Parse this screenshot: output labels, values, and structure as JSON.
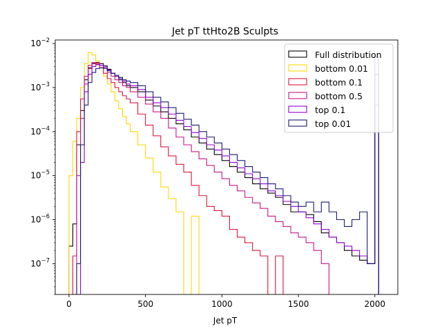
{
  "chart_data": {
    "type": "line",
    "title": "Jet pT ttHto2B Sculpts",
    "xlabel": "Jet pT",
    "ylabel": "",
    "xlim": [
      -90,
      2150
    ],
    "ylim": [
      2e-08,
      0.012
    ],
    "yscale": "log",
    "x_ticks": [
      0,
      500,
      1000,
      1500,
      2000
    ],
    "y_ticks": [
      {
        "value": 1e-07,
        "mantissa": "10",
        "exp": "−7"
      },
      {
        "value": 1e-06,
        "mantissa": "10",
        "exp": "−6"
      },
      {
        "value": 1e-05,
        "mantissa": "10",
        "exp": "−5"
      },
      {
        "value": 0.0001,
        "mantissa": "10",
        "exp": "−4"
      },
      {
        "value": 0.001,
        "mantissa": "10",
        "exp": "−3"
      },
      {
        "value": 0.01,
        "mantissa": "10",
        "exp": "−2"
      }
    ],
    "legend_position": "top-right",
    "bin_width": 25,
    "series": [
      {
        "name": "Full distribution",
        "color": "#000000",
        "edges": [
          0,
          25,
          50,
          75,
          100,
          125,
          150,
          175,
          200,
          225,
          250,
          275,
          300,
          325,
          350,
          375,
          400,
          450,
          500,
          550,
          600,
          650,
          700,
          750,
          800,
          850,
          900,
          950,
          1000,
          1050,
          1100,
          1150,
          1200,
          1250,
          1300,
          1350,
          1400,
          1450,
          1500,
          1550,
          1600,
          1650,
          1700,
          1750,
          1800,
          1850,
          1900,
          1950,
          2000,
          2025,
          2050
        ],
        "values": [
          2.5e-07,
          8e-07,
          5e-05,
          0.0003,
          0.0015,
          0.0028,
          0.0035,
          0.0037,
          0.0035,
          0.0031,
          0.0026,
          0.0021,
          0.0018,
          0.0015,
          0.0013,
          0.0011,
          0.001,
          0.0008,
          0.00052,
          0.00038,
          0.00028,
          0.0002,
          0.00015,
          0.00011,
          7.5e-05,
          5.5e-05,
          4e-05,
          3e-05,
          2.2e-05,
          1.6e-05,
          1.2e-05,
          9e-06,
          6.5e-06,
          5e-06,
          4e-06,
          3.2e-06,
          2.2e-06,
          1.5e-06,
          1.5e-06,
          1.3e-06,
          9e-07,
          5e-07,
          4e-07,
          3e-07,
          2e-07,
          1.5e-07,
          1.2e-07,
          1e-07,
          0.002,
          2e-08
        ]
      },
      {
        "name": "bottom 0.01",
        "color": "#ffd700",
        "edges": [
          0,
          25,
          50,
          75,
          100,
          125,
          150,
          175,
          200,
          225,
          250,
          275,
          300,
          325,
          350,
          375,
          400,
          450,
          500,
          550,
          600,
          650,
          700,
          750,
          800,
          850,
          900
        ],
        "values": [
          1e-05,
          6e-05,
          0.0002,
          0.001,
          0.0035,
          0.0062,
          0.0055,
          0.004,
          0.0028,
          0.0018,
          0.0012,
          0.0008,
          0.0005,
          0.00033,
          0.00022,
          0.00015,
          0.0001,
          5e-05,
          2.5e-05,
          1.2e-05,
          5.5e-06,
          3e-06,
          1.5e-06,
          2e-08,
          1.2e-06,
          2e-08
        ]
      },
      {
        "name": "bottom 0.1",
        "color": "#dc143c",
        "edges": [
          0,
          25,
          50,
          75,
          100,
          125,
          150,
          175,
          200,
          225,
          250,
          275,
          300,
          325,
          350,
          375,
          400,
          450,
          500,
          550,
          600,
          650,
          700,
          750,
          800,
          850,
          900,
          950,
          1000,
          1050,
          1100,
          1150,
          1200,
          1250,
          1300,
          1350,
          1400,
          1450
        ],
        "values": [
          2e-08,
          1.5e-07,
          0.0001,
          0.00055,
          0.0018,
          0.0032,
          0.0037,
          0.0034,
          0.0028,
          0.0021,
          0.0016,
          0.0013,
          0.001,
          0.0008,
          0.00065,
          0.00055,
          0.00045,
          0.00025,
          0.00014,
          8e-05,
          4.5e-05,
          2.8e-05,
          1.8e-05,
          1.2e-05,
          6e-06,
          3.5e-06,
          2e-06,
          1.6e-06,
          1.2e-06,
          6e-07,
          4e-07,
          3e-07,
          2e-07,
          1.5e-07,
          2e-08,
          1.5e-07,
          2e-08
        ]
      },
      {
        "name": "bottom 0.5",
        "color": "#c71585",
        "edges": [
          0,
          25,
          50,
          75,
          100,
          125,
          150,
          175,
          200,
          225,
          250,
          275,
          300,
          325,
          350,
          375,
          400,
          450,
          500,
          550,
          600,
          650,
          700,
          750,
          800,
          850,
          900,
          950,
          1000,
          1050,
          1100,
          1150,
          1200,
          1250,
          1300,
          1350,
          1400,
          1450,
          1500,
          1550,
          1600,
          1650,
          1700
        ],
        "values": [
          2e-08,
          2e-08,
          1e-05,
          0.0002,
          0.0012,
          0.0027,
          0.0036,
          0.0036,
          0.0032,
          0.0027,
          0.0022,
          0.0018,
          0.0015,
          0.0013,
          0.0011,
          0.001,
          0.0008,
          0.0006,
          0.00042,
          0.00028,
          0.0002,
          0.00012,
          7.5e-05,
          5e-05,
          3.5e-05,
          2.4e-05,
          1.7e-05,
          1.2e-05,
          8.5e-06,
          6e-06,
          4.5e-06,
          3.2e-06,
          2.4e-06,
          1.8e-06,
          1.2e-06,
          9e-07,
          7e-07,
          5e-07,
          4e-07,
          3e-07,
          2e-07,
          1e-07
        ]
      },
      {
        "name": "top 0.1",
        "color": "#9400d3",
        "edges": [
          0,
          25,
          50,
          75,
          100,
          125,
          150,
          175,
          200,
          225,
          250,
          275,
          300,
          325,
          350,
          375,
          400,
          450,
          500,
          550,
          600,
          650,
          700,
          750,
          800,
          850,
          900,
          950,
          1000,
          1050,
          1100,
          1150,
          1200,
          1250,
          1300,
          1350,
          1400,
          1450,
          1500,
          1550,
          1600,
          1650,
          1700,
          1750,
          1800,
          1850,
          1900,
          1950,
          2000,
          2025,
          2050
        ],
        "values": [
          2e-08,
          2e-08,
          2e-08,
          2e-05,
          0.0008,
          0.002,
          0.003,
          0.0033,
          0.0032,
          0.0029,
          0.0025,
          0.0021,
          0.0018,
          0.0016,
          0.0014,
          0.0012,
          0.0011,
          0.0009,
          0.0006,
          0.00045,
          0.00035,
          0.00025,
          0.00018,
          0.00013,
          9.5e-05,
          7e-05,
          5e-05,
          3.8e-05,
          2.8e-05,
          2e-05,
          1.5e-05,
          1.1e-05,
          8.5e-06,
          6.5e-06,
          4.5e-06,
          3.5e-06,
          2.6e-06,
          2e-06,
          1.5e-06,
          1.1e-06,
          8e-07,
          6e-07,
          4e-07,
          3e-07,
          2.5e-07,
          2e-07,
          1.5e-07,
          1e-07,
          0.0004,
          2e-08
        ]
      },
      {
        "name": "top 0.01",
        "color": "#191970",
        "edges": [
          0,
          25,
          50,
          75,
          100,
          125,
          150,
          175,
          200,
          225,
          250,
          275,
          300,
          325,
          350,
          375,
          400,
          450,
          500,
          550,
          600,
          650,
          700,
          750,
          800,
          850,
          900,
          950,
          1000,
          1050,
          1100,
          1150,
          1200,
          1250,
          1300,
          1350,
          1400,
          1450,
          1500,
          1550,
          1600,
          1650,
          1700,
          1750,
          1800,
          1850,
          1900,
          1950,
          2000,
          2025,
          2050
        ],
        "values": [
          2e-08,
          2e-08,
          1e-07,
          5e-05,
          0.0004,
          0.0013,
          0.0022,
          0.0027,
          0.0028,
          0.0027,
          0.0024,
          0.0021,
          0.0019,
          0.0017,
          0.0015,
          0.0014,
          0.0013,
          0.0011,
          0.0008,
          0.0006,
          0.00047,
          0.00035,
          0.00026,
          0.00019,
          0.00014,
          0.0001,
          7.5e-05,
          5.5e-05,
          4e-05,
          3e-05,
          2.2e-05,
          1.6e-05,
          1.2e-05,
          9e-06,
          6.5e-06,
          5e-06,
          3.5e-06,
          2.5e-06,
          2e-06,
          2.5e-06,
          1.5e-06,
          2.5e-06,
          1.5e-06,
          1e-06,
          7e-07,
          1e-06,
          1.5e-06,
          1e-07,
          0.005,
          2e-08
        ]
      }
    ]
  }
}
